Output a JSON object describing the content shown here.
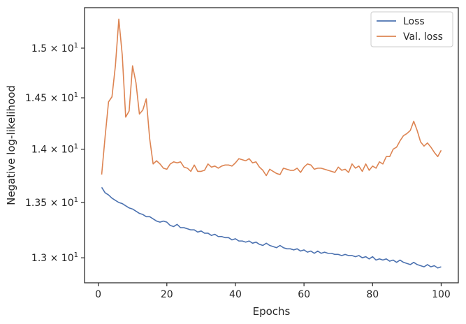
{
  "chart_data": {
    "type": "line",
    "xlabel": "Epochs",
    "ylabel": "Negative log-likelihood",
    "xlim": [
      -4,
      105
    ],
    "ylim": [
      12.78,
      15.42
    ],
    "yscale": "log",
    "grid": false,
    "legend_position": "top-right",
    "x_ticks": [
      0,
      20,
      40,
      60,
      80,
      100
    ],
    "x_tick_labels": [
      "0",
      "20",
      "40",
      "60",
      "80",
      "100"
    ],
    "y_ticks": [
      13.0,
      13.5,
      14.0,
      14.5,
      15.0
    ],
    "y_tick_labels": [
      {
        "mantissa": "1.3",
        "exp": "1"
      },
      {
        "mantissa": "1.35",
        "exp": "1"
      },
      {
        "mantissa": "1.4",
        "exp": "1"
      },
      {
        "mantissa": "1.45",
        "exp": "1"
      },
      {
        "mantissa": "1.5",
        "exp": "1"
      }
    ],
    "x": [
      1,
      2,
      3,
      4,
      5,
      6,
      7,
      8,
      9,
      10,
      11,
      12,
      13,
      14,
      15,
      16,
      17,
      18,
      19,
      20,
      21,
      22,
      23,
      24,
      25,
      26,
      27,
      28,
      29,
      30,
      31,
      32,
      33,
      34,
      35,
      36,
      37,
      38,
      39,
      40,
      41,
      42,
      43,
      44,
      45,
      46,
      47,
      48,
      49,
      50,
      51,
      52,
      53,
      54,
      55,
      56,
      57,
      58,
      59,
      60,
      61,
      62,
      63,
      64,
      65,
      66,
      67,
      68,
      69,
      70,
      71,
      72,
      73,
      74,
      75,
      76,
      77,
      78,
      79,
      80,
      81,
      82,
      83,
      84,
      85,
      86,
      87,
      88,
      89,
      90,
      91,
      92,
      93,
      94,
      95,
      96,
      97,
      98,
      99,
      100
    ],
    "series": [
      {
        "name": "Loss",
        "color": "#4c72b0",
        "values": [
          13.64,
          13.59,
          13.57,
          13.54,
          13.52,
          13.5,
          13.49,
          13.47,
          13.45,
          13.44,
          13.42,
          13.4,
          13.39,
          13.37,
          13.37,
          13.35,
          13.33,
          13.32,
          13.33,
          13.32,
          13.29,
          13.28,
          13.3,
          13.27,
          13.27,
          13.26,
          13.25,
          13.25,
          13.23,
          13.24,
          13.22,
          13.22,
          13.2,
          13.21,
          13.19,
          13.19,
          13.18,
          13.18,
          13.16,
          13.17,
          13.15,
          13.15,
          13.14,
          13.15,
          13.13,
          13.14,
          13.12,
          13.11,
          13.13,
          13.11,
          13.1,
          13.09,
          13.11,
          13.09,
          13.08,
          13.08,
          13.07,
          13.08,
          13.06,
          13.07,
          13.05,
          13.06,
          13.04,
          13.06,
          13.04,
          13.05,
          13.04,
          13.04,
          13.03,
          13.03,
          13.02,
          13.03,
          13.02,
          13.02,
          13.01,
          13.02,
          13.0,
          13.01,
          12.99,
          13.01,
          12.98,
          12.99,
          12.98,
          12.99,
          12.97,
          12.98,
          12.96,
          12.98,
          12.96,
          12.95,
          12.94,
          12.96,
          12.94,
          12.93,
          12.92,
          12.94,
          12.92,
          12.93,
          12.91,
          12.92
        ]
      },
      {
        "name": "Val. loss",
        "color": "#dd8452",
        "values": [
          13.76,
          14.12,
          14.46,
          14.51,
          14.82,
          15.3,
          14.93,
          14.31,
          14.37,
          14.82,
          14.65,
          14.34,
          14.38,
          14.49,
          14.1,
          13.86,
          13.89,
          13.86,
          13.82,
          13.81,
          13.86,
          13.88,
          13.87,
          13.88,
          13.83,
          13.82,
          13.79,
          13.85,
          13.79,
          13.79,
          13.8,
          13.86,
          13.83,
          13.84,
          13.82,
          13.84,
          13.85,
          13.85,
          13.84,
          13.87,
          13.91,
          13.9,
          13.89,
          13.91,
          13.87,
          13.88,
          13.83,
          13.8,
          13.75,
          13.81,
          13.79,
          13.77,
          13.76,
          13.82,
          13.81,
          13.8,
          13.8,
          13.82,
          13.78,
          13.83,
          13.86,
          13.85,
          13.81,
          13.82,
          13.82,
          13.81,
          13.8,
          13.79,
          13.78,
          13.83,
          13.8,
          13.81,
          13.78,
          13.86,
          13.82,
          13.84,
          13.79,
          13.86,
          13.8,
          13.84,
          13.82,
          13.88,
          13.86,
          13.93,
          13.93,
          14.0,
          14.02,
          14.08,
          14.13,
          14.15,
          14.18,
          14.27,
          14.18,
          14.07,
          14.03,
          14.06,
          14.02,
          13.97,
          13.93,
          13.99
        ]
      }
    ]
  }
}
